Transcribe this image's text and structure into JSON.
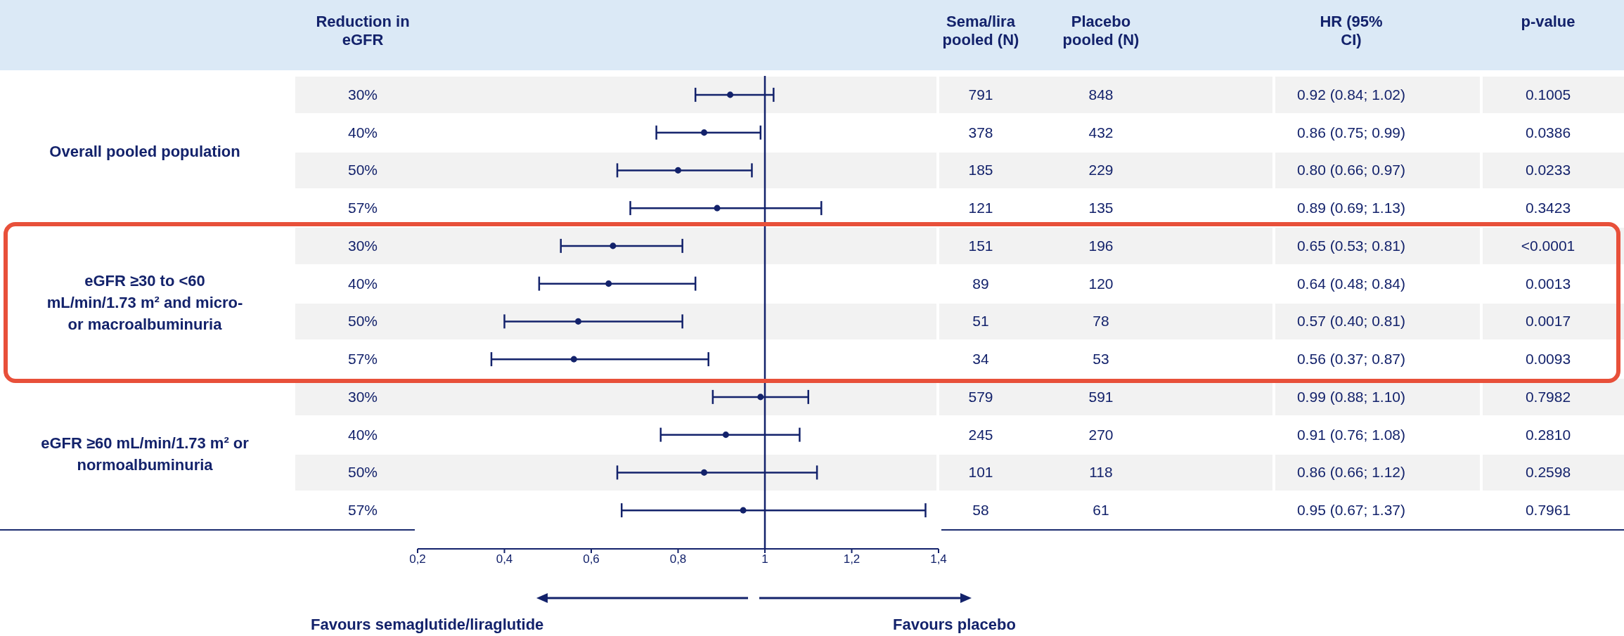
{
  "chart_data": {
    "type": "scatter",
    "orientation": "horizontal",
    "ylabel": "Reduction in eGFR",
    "categories": [
      "30%",
      "40%",
      "50%",
      "57%",
      "30%",
      "40%",
      "50%",
      "57%",
      "30%",
      "40%",
      "50%",
      "57%"
    ],
    "series": [
      {
        "name": "Sema/lira pooled (N)",
        "type": "other",
        "values": [
          null,
          null,
          null,
          null,
          null,
          null,
          null,
          null,
          null,
          null,
          null,
          null
        ],
        "value_labels": [
          "791",
          "378",
          "185",
          "121",
          "151",
          "89",
          "51",
          "34",
          "579",
          "245",
          "101",
          "58"
        ]
      },
      {
        "name": "Placebo pooled (N)",
        "type": "other",
        "values": [
          null,
          null,
          null,
          null,
          null,
          null,
          null,
          null,
          null,
          null,
          null,
          null
        ],
        "value_labels": [
          "848",
          "432",
          "229",
          "135",
          "196",
          "120",
          "78",
          "53",
          "591",
          "270",
          "118",
          "61"
        ]
      },
      {
        "name": "HR (95% CI)",
        "color": "#13226b",
        "values": [
          0.92,
          0.86,
          0.8,
          0.89,
          0.65,
          0.64,
          0.57,
          0.56,
          0.99,
          0.91,
          0.86,
          0.95
        ],
        "errors": [
          [
            0.84,
            1.02
          ],
          [
            0.75,
            0.99
          ],
          [
            0.66,
            0.97
          ],
          [
            0.69,
            1.13
          ],
          [
            0.53,
            0.81
          ],
          [
            0.48,
            0.84
          ],
          [
            0.4,
            0.81
          ],
          [
            0.37,
            0.87
          ],
          [
            0.88,
            1.1
          ],
          [
            0.76,
            1.08
          ],
          [
            0.66,
            1.12
          ],
          [
            0.67,
            1.37
          ]
        ],
        "value_labels": [
          "0.92 (0.84; 1.02)",
          "0.86 (0.75; 0.99)",
          "0.80 (0.66; 0.97)",
          "0.89 (0.69; 1.13)",
          "0.65 (0.53; 0.81)",
          "0.64 (0.48; 0.84)",
          "0.57 (0.40; 0.81)",
          "0.56 (0.37; 0.87)",
          "0.99 (0.88; 1.10)",
          "0.91 (0.76; 1.08)",
          "0.86 (0.66; 1.12)",
          "0.95 (0.67; 1.37)"
        ]
      },
      {
        "name": "p-value",
        "type": "other",
        "values": [
          null,
          null,
          null,
          null,
          null,
          null,
          null,
          null,
          null,
          null,
          null,
          null
        ],
        "value_labels": [
          "0.1005",
          "0.0386",
          "0.0233",
          "0.3423",
          "<0.0001",
          "0.0013",
          "0.0017",
          "0.0093",
          "0.7982",
          "0.2810",
          "0.2598",
          "0.7961"
        ]
      }
    ],
    "xlim": [
      0.2,
      1.4
    ],
    "xticks": [
      {
        "value": 0.2,
        "label": "0,2"
      },
      {
        "value": 0.4,
        "label": "0,4"
      },
      {
        "value": 0.6,
        "label": "0,6"
      },
      {
        "value": 0.8,
        "label": "0,8"
      },
      {
        "value": 1,
        "label": "1"
      },
      {
        "value": 1.2,
        "label": "1,2"
      },
      {
        "value": 1.4,
        "label": "1,4"
      }
    ],
    "ref_lines": [
      {
        "axis": "x",
        "value": 1,
        "color": "#13226b"
      }
    ],
    "marker": "circle",
    "annotations": [
      "Overall pooled population",
      "eGFR ≥30 to <60 mL/min/1.73 m² and micro-or macroalbuminuria",
      "eGFR ≥60 mL/min/1.73 m² or normoalbuminuria",
      "Favours semaglutide/liraglutide",
      "Favours placebo"
    ]
  }
}
